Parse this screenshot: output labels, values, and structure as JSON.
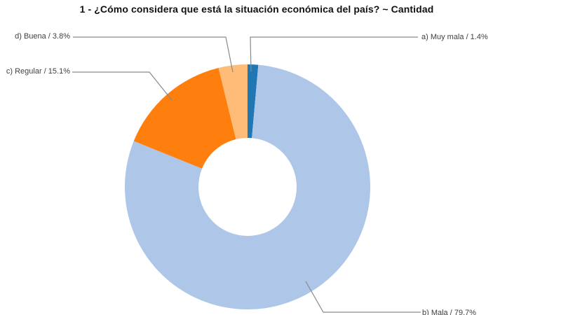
{
  "header": {
    "title": "1 - ¿Cómo considera que está la situación económica del país? ~ Cantidad"
  },
  "chart_data": {
    "type": "pie",
    "subtype": "donut",
    "title": "1 - ¿Cómo considera que está la situación económica del país? ~ Cantidad",
    "unit": "%",
    "categories": [
      "a) Muy mala",
      "b) Mala",
      "c) Regular",
      "d) Buena"
    ],
    "values": [
      1.4,
      79.7,
      15.1,
      3.8
    ],
    "colors": [
      "#1f77b4",
      "#aec7e8",
      "#ff7f0e",
      "#ffbb78"
    ],
    "start_angle_deg": 0,
    "direction": "clockwise",
    "inner_radius_ratio": 0.4,
    "legend": "none",
    "background_color": "#ffffff",
    "leader_line_color": "#8a8a8a",
    "label_color": "#404040",
    "callouts": {
      "muy_mala": "a) Muy mala / 1.4%",
      "mala": "b) Mala / 79.7%",
      "regular": "c) Regular / 15.1%",
      "buena": "d) Buena / 3.8%"
    }
  }
}
